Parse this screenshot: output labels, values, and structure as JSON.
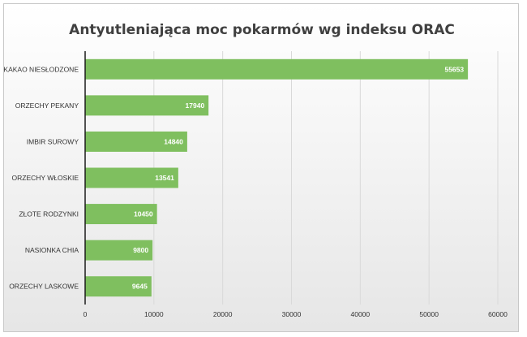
{
  "chart_data": {
    "type": "bar",
    "orientation": "horizontal",
    "title": "Antyutleniająca moc pokarmów wg indeksu ORAC",
    "categories": [
      "KAKAO NIESŁODZONE",
      "ORZECHY PEKANY",
      "IMBIR SUROWY",
      "ORZECHY WŁOSKIE",
      "ZŁOTE RODZYNKI",
      "NASIONKA CHIA",
      "ORZECHY LASKOWE"
    ],
    "values": [
      55653,
      17940,
      14840,
      13541,
      10450,
      9800,
      9645
    ],
    "value_labels": [
      "55653",
      "17940",
      "14840",
      "13541",
      "10450",
      "9800",
      "9645"
    ],
    "xlim": [
      0,
      60000
    ],
    "x_ticks": [
      0,
      10000,
      20000,
      30000,
      40000,
      50000,
      60000
    ],
    "x_tick_labels": [
      "0",
      "10000",
      "20000",
      "30000",
      "40000",
      "50000",
      "60000"
    ],
    "grid": true,
    "bar_color": "#7fbf5f",
    "data_labels": "inside-end"
  }
}
